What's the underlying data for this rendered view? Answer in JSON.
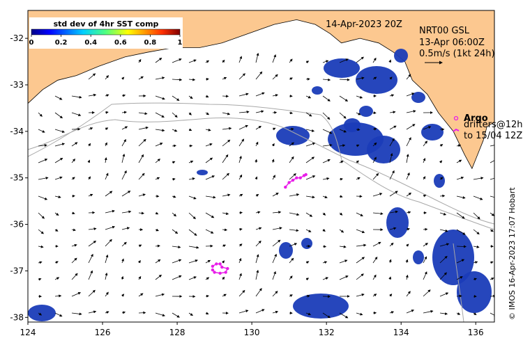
{
  "map": {
    "date_label": "14-Apr-2023 20Z",
    "product_label": "NRT00 GSL",
    "current_time_label": "13-Apr 06:00Z",
    "current_scale_label": "0.5m/s (1kt 24h)",
    "argo_label": "Argo",
    "drifters_label": "drifters@12h",
    "drifters_to_label": "to 15/04 12Z",
    "credit_label": "© IMOS 16-Apr-2023 17:07 Hobart",
    "colors": {
      "land": "#fcc890",
      "sst_high": "#1a3cb8",
      "drifter": "#e81ee8",
      "contour": "#a8a8a8",
      "arrow": "#000000"
    }
  },
  "colorbar": {
    "title": "std dev of 4hr SST comp",
    "ticks": [
      "0",
      "0.2",
      "0.4",
      "0.6",
      "0.8",
      "1"
    ],
    "range": [
      0,
      1
    ]
  },
  "chart_data": {
    "type": "map",
    "xlim": [
      124,
      136.5
    ],
    "ylim": [
      -38.1,
      -31.4
    ],
    "x_ticks": [
      124,
      126,
      128,
      130,
      132,
      134,
      136
    ],
    "x_tick_labels": [
      "124",
      "126",
      "128",
      "130",
      "132",
      "134",
      "136"
    ],
    "y_ticks": [
      -32,
      -33,
      -34,
      -35,
      -36,
      -37,
      -38
    ],
    "y_tick_labels": [
      "-32",
      "-33",
      "-34",
      "-35",
      "-36",
      "-37",
      "-38"
    ],
    "coastline": [
      [
        124,
        -33.4
      ],
      [
        124.4,
        -33.1
      ],
      [
        124.8,
        -32.9
      ],
      [
        125.3,
        -32.8
      ],
      [
        125.9,
        -32.6
      ],
      [
        126.6,
        -32.4
      ],
      [
        127.2,
        -32.3
      ],
      [
        127.9,
        -32.2
      ],
      [
        128.6,
        -32.2
      ],
      [
        129.2,
        -32.1
      ],
      [
        129.9,
        -31.9
      ],
      [
        130.6,
        -31.7
      ],
      [
        131.2,
        -31.6
      ],
      [
        131.7,
        -31.7
      ],
      [
        132.1,
        -31.9
      ],
      [
        132.4,
        -32.1
      ],
      [
        132.9,
        -32.0
      ],
      [
        133.4,
        -32.1
      ],
      [
        133.8,
        -32.3
      ],
      [
        134.1,
        -32.5
      ],
      [
        134.3,
        -32.9
      ],
      [
        134.7,
        -33.2
      ],
      [
        135.0,
        -33.6
      ],
      [
        135.4,
        -34.0
      ],
      [
        135.7,
        -34.5
      ],
      [
        135.9,
        -34.8
      ],
      [
        136.0,
        -34.6
      ],
      [
        136.2,
        -34.2
      ],
      [
        136.3,
        -33.9
      ],
      [
        136.5,
        -33.8
      ]
    ],
    "drifter_tracks": [
      [
        [
          130.9,
          -35.2
        ],
        [
          131.0,
          -35.1
        ],
        [
          131.1,
          -35.05
        ],
        [
          131.2,
          -35.0
        ],
        [
          131.3,
          -35.0
        ],
        [
          131.4,
          -34.95
        ],
        [
          131.45,
          -34.93
        ]
      ],
      [
        [
          128.95,
          -36.9
        ],
        [
          129.05,
          -36.85
        ],
        [
          129.15,
          -36.85
        ],
        [
          129.2,
          -36.92
        ],
        [
          129.35,
          -36.95
        ],
        [
          129.3,
          -37.03
        ],
        [
          129.15,
          -37.05
        ],
        [
          129.0,
          -37.03
        ],
        [
          128.95,
          -36.98
        ]
      ]
    ],
    "argo_positions": []
  }
}
